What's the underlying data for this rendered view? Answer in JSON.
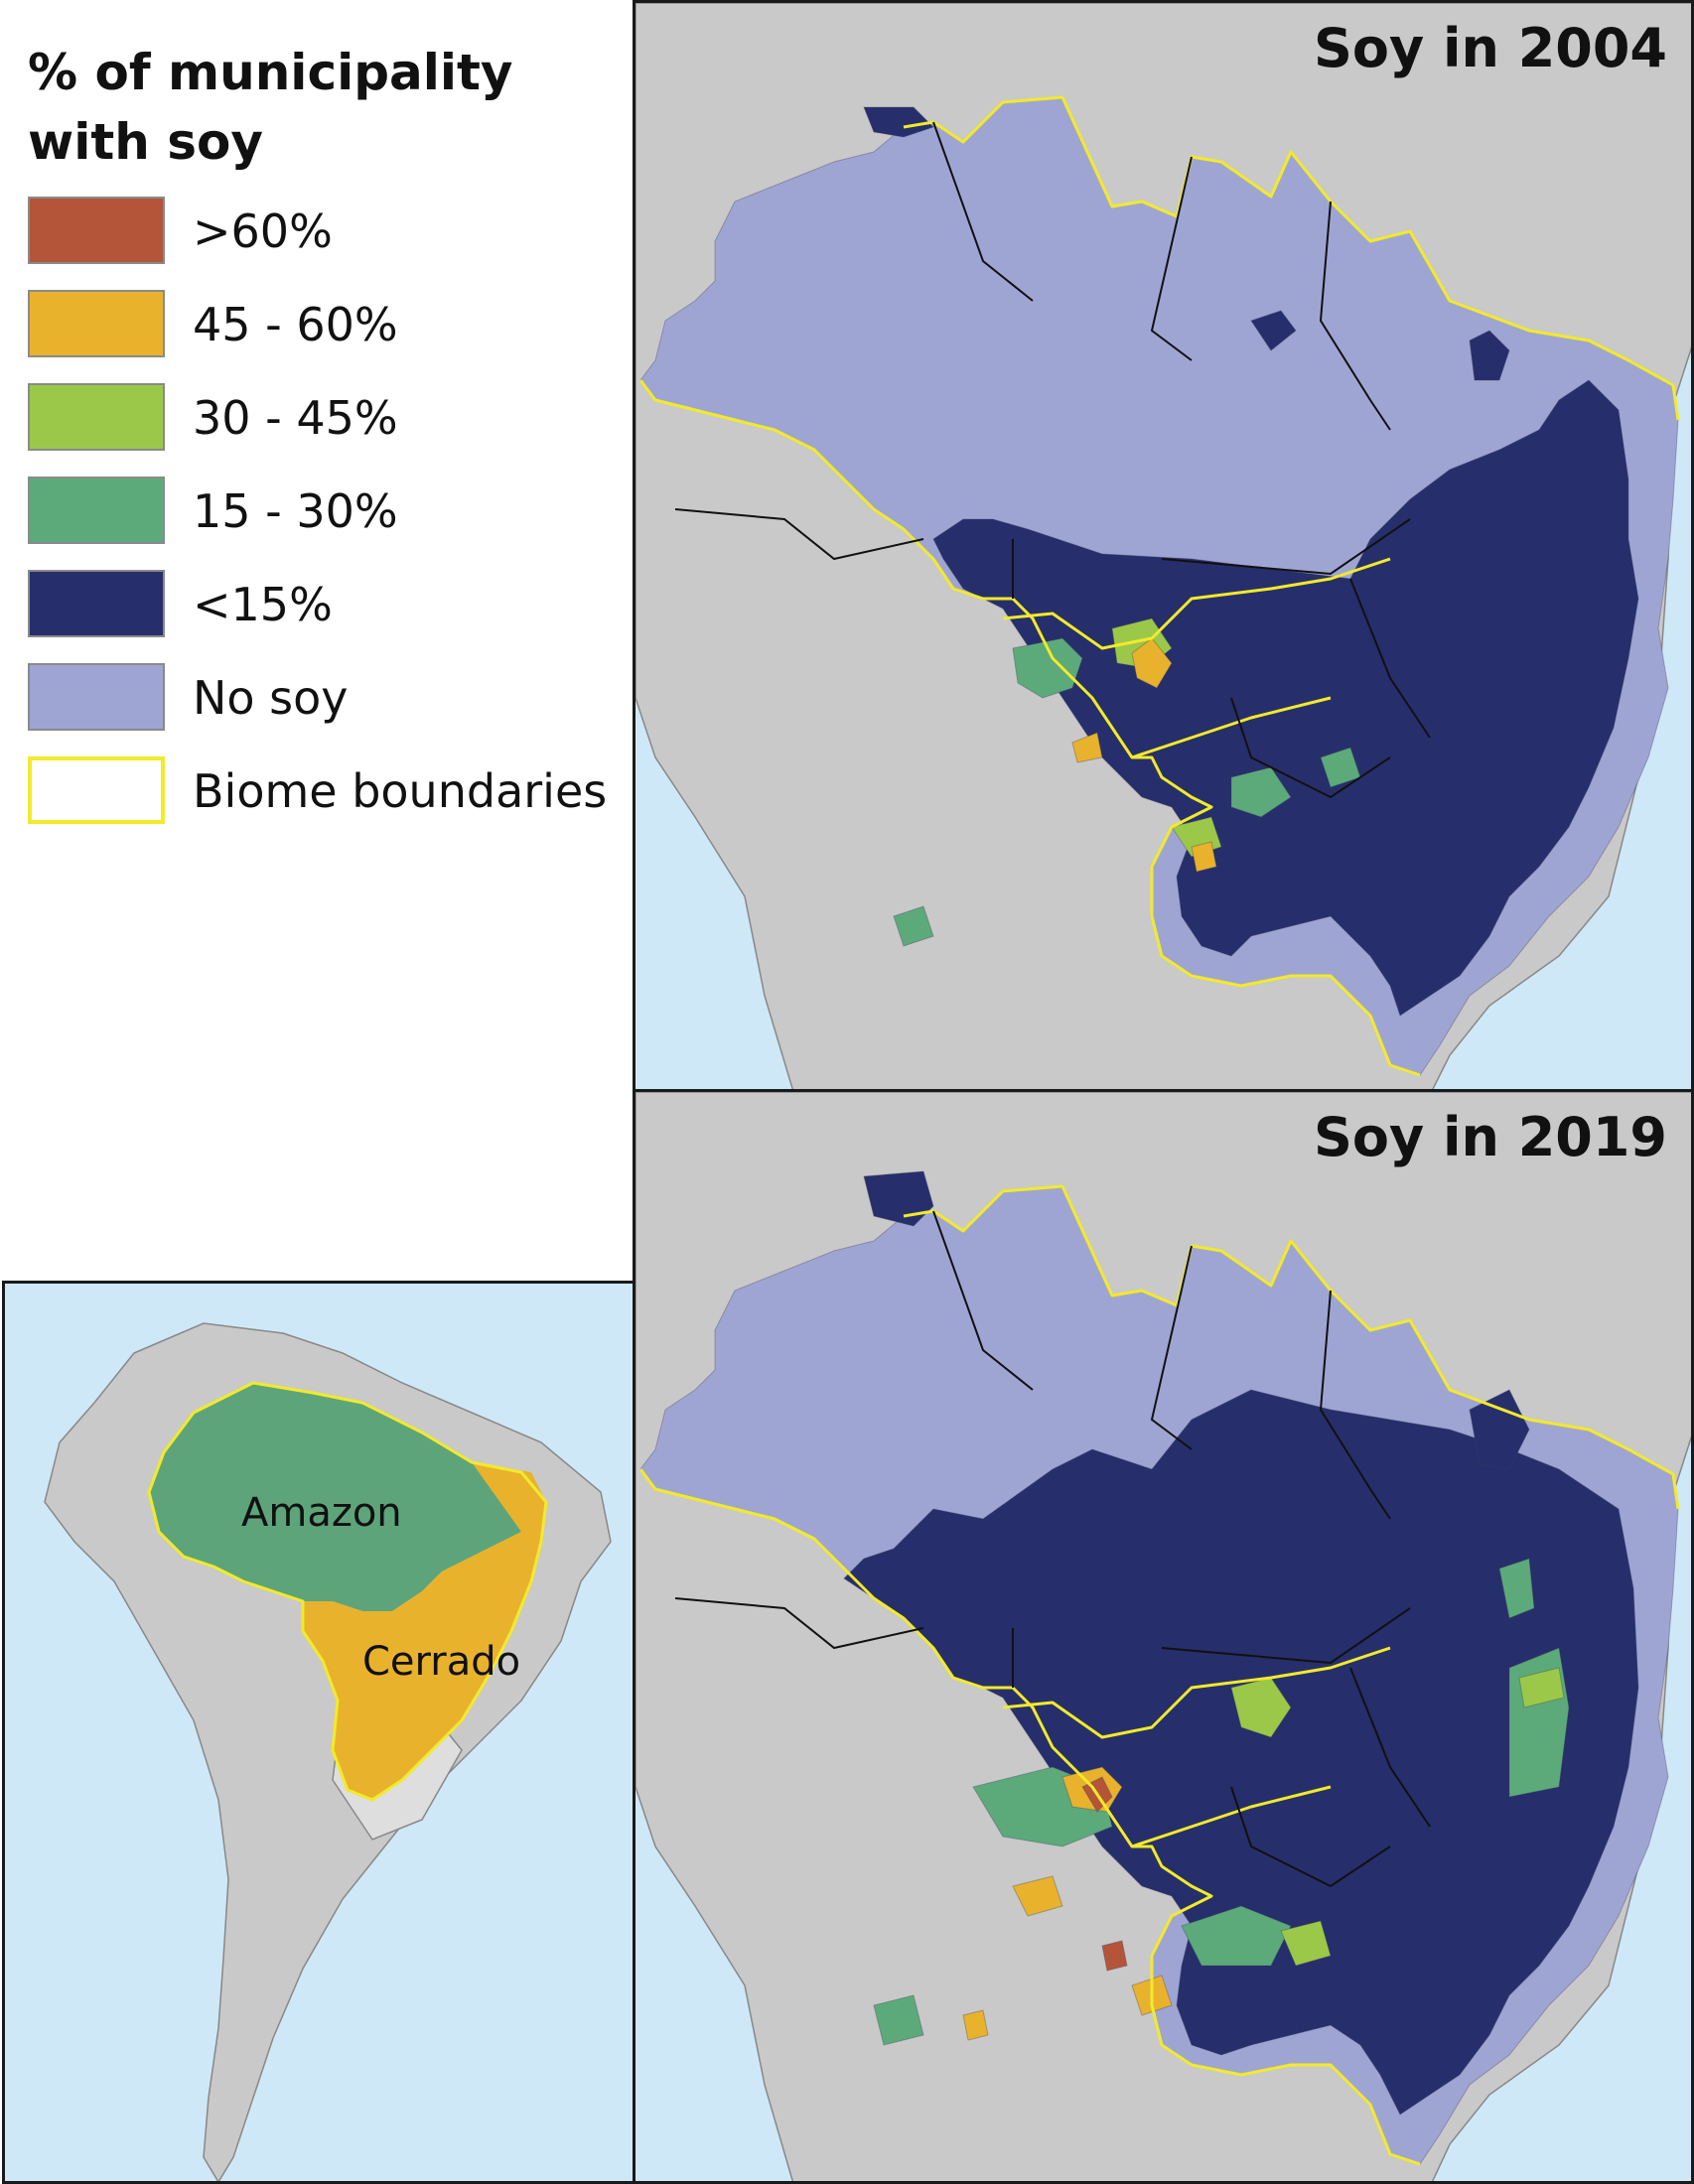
{
  "legend": {
    "title": "% of municipality with soy",
    "items": [
      {
        "label": ">60%",
        "color": "#b4553a"
      },
      {
        "label": "45 - 60%",
        "color": "#e8b22c"
      },
      {
        "label": "30 - 45%",
        "color": "#9cc84a"
      },
      {
        "label": "15 - 30%",
        "color": "#5caa7a"
      },
      {
        "label": "<15%",
        "color": "#262f6b"
      },
      {
        "label": "No soy",
        "color": "#9fa5d3"
      },
      {
        "label": "Biome boundaries",
        "color": "#f2ea2a"
      }
    ]
  },
  "maps": [
    {
      "title": "Soy in 2004"
    },
    {
      "title": "Soy in 2019"
    }
  ],
  "inset": {
    "amazon_label": "Amazon",
    "cerrado_label": "Cerrado",
    "amazon_color": "#5ea47a",
    "cerrado_color": "#e8b22c"
  },
  "colors": {
    "ocean": "#cfe8f7",
    "land": "#c9c9c9",
    "land_light": "#dedede",
    "boundary": "#f2ea2a",
    "state_line": "#111111"
  }
}
